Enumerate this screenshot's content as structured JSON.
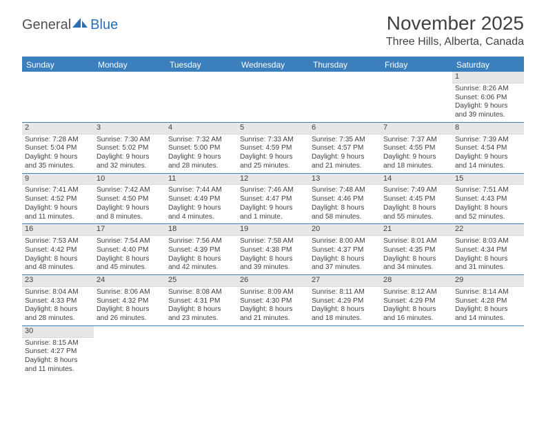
{
  "logo": {
    "main": "General",
    "accent": "Blue"
  },
  "title": "November 2025",
  "location": "Three Hills, Alberta, Canada",
  "colors": {
    "header_bg": "#3b7fbd",
    "header_text": "#ffffff",
    "daynum_bg": "#e7e7e7",
    "text": "#414141",
    "logo_accent": "#2a6db5"
  },
  "dayHeaders": [
    "Sunday",
    "Monday",
    "Tuesday",
    "Wednesday",
    "Thursday",
    "Friday",
    "Saturday"
  ],
  "weeks": [
    [
      null,
      null,
      null,
      null,
      null,
      null,
      {
        "n": "1",
        "sr": "8:26 AM",
        "ss": "6:06 PM",
        "dl": "9 hours",
        "dl2": "and 39 minutes."
      }
    ],
    [
      {
        "n": "2",
        "sr": "7:28 AM",
        "ss": "5:04 PM",
        "dl": "9 hours",
        "dl2": "and 35 minutes."
      },
      {
        "n": "3",
        "sr": "7:30 AM",
        "ss": "5:02 PM",
        "dl": "9 hours",
        "dl2": "and 32 minutes."
      },
      {
        "n": "4",
        "sr": "7:32 AM",
        "ss": "5:00 PM",
        "dl": "9 hours",
        "dl2": "and 28 minutes."
      },
      {
        "n": "5",
        "sr": "7:33 AM",
        "ss": "4:59 PM",
        "dl": "9 hours",
        "dl2": "and 25 minutes."
      },
      {
        "n": "6",
        "sr": "7:35 AM",
        "ss": "4:57 PM",
        "dl": "9 hours",
        "dl2": "and 21 minutes."
      },
      {
        "n": "7",
        "sr": "7:37 AM",
        "ss": "4:55 PM",
        "dl": "9 hours",
        "dl2": "and 18 minutes."
      },
      {
        "n": "8",
        "sr": "7:39 AM",
        "ss": "4:54 PM",
        "dl": "9 hours",
        "dl2": "and 14 minutes."
      }
    ],
    [
      {
        "n": "9",
        "sr": "7:41 AM",
        "ss": "4:52 PM",
        "dl": "9 hours",
        "dl2": "and 11 minutes."
      },
      {
        "n": "10",
        "sr": "7:42 AM",
        "ss": "4:50 PM",
        "dl": "9 hours",
        "dl2": "and 8 minutes."
      },
      {
        "n": "11",
        "sr": "7:44 AM",
        "ss": "4:49 PM",
        "dl": "9 hours",
        "dl2": "and 4 minutes."
      },
      {
        "n": "12",
        "sr": "7:46 AM",
        "ss": "4:47 PM",
        "dl": "9 hours",
        "dl2": "and 1 minute."
      },
      {
        "n": "13",
        "sr": "7:48 AM",
        "ss": "4:46 PM",
        "dl": "8 hours",
        "dl2": "and 58 minutes."
      },
      {
        "n": "14",
        "sr": "7:49 AM",
        "ss": "4:45 PM",
        "dl": "8 hours",
        "dl2": "and 55 minutes."
      },
      {
        "n": "15",
        "sr": "7:51 AM",
        "ss": "4:43 PM",
        "dl": "8 hours",
        "dl2": "and 52 minutes."
      }
    ],
    [
      {
        "n": "16",
        "sr": "7:53 AM",
        "ss": "4:42 PM",
        "dl": "8 hours",
        "dl2": "and 48 minutes."
      },
      {
        "n": "17",
        "sr": "7:54 AM",
        "ss": "4:40 PM",
        "dl": "8 hours",
        "dl2": "and 45 minutes."
      },
      {
        "n": "18",
        "sr": "7:56 AM",
        "ss": "4:39 PM",
        "dl": "8 hours",
        "dl2": "and 42 minutes."
      },
      {
        "n": "19",
        "sr": "7:58 AM",
        "ss": "4:38 PM",
        "dl": "8 hours",
        "dl2": "and 39 minutes."
      },
      {
        "n": "20",
        "sr": "8:00 AM",
        "ss": "4:37 PM",
        "dl": "8 hours",
        "dl2": "and 37 minutes."
      },
      {
        "n": "21",
        "sr": "8:01 AM",
        "ss": "4:35 PM",
        "dl": "8 hours",
        "dl2": "and 34 minutes."
      },
      {
        "n": "22",
        "sr": "8:03 AM",
        "ss": "4:34 PM",
        "dl": "8 hours",
        "dl2": "and 31 minutes."
      }
    ],
    [
      {
        "n": "23",
        "sr": "8:04 AM",
        "ss": "4:33 PM",
        "dl": "8 hours",
        "dl2": "and 28 minutes."
      },
      {
        "n": "24",
        "sr": "8:06 AM",
        "ss": "4:32 PM",
        "dl": "8 hours",
        "dl2": "and 26 minutes."
      },
      {
        "n": "25",
        "sr": "8:08 AM",
        "ss": "4:31 PM",
        "dl": "8 hours",
        "dl2": "and 23 minutes."
      },
      {
        "n": "26",
        "sr": "8:09 AM",
        "ss": "4:30 PM",
        "dl": "8 hours",
        "dl2": "and 21 minutes."
      },
      {
        "n": "27",
        "sr": "8:11 AM",
        "ss": "4:29 PM",
        "dl": "8 hours",
        "dl2": "and 18 minutes."
      },
      {
        "n": "28",
        "sr": "8:12 AM",
        "ss": "4:29 PM",
        "dl": "8 hours",
        "dl2": "and 16 minutes."
      },
      {
        "n": "29",
        "sr": "8:14 AM",
        "ss": "4:28 PM",
        "dl": "8 hours",
        "dl2": "and 14 minutes."
      }
    ],
    [
      {
        "n": "30",
        "sr": "8:15 AM",
        "ss": "4:27 PM",
        "dl": "8 hours",
        "dl2": "and 11 minutes."
      },
      null,
      null,
      null,
      null,
      null,
      null
    ]
  ],
  "labels": {
    "sunrise": "Sunrise: ",
    "sunset": "Sunset: ",
    "daylight": "Daylight: "
  }
}
